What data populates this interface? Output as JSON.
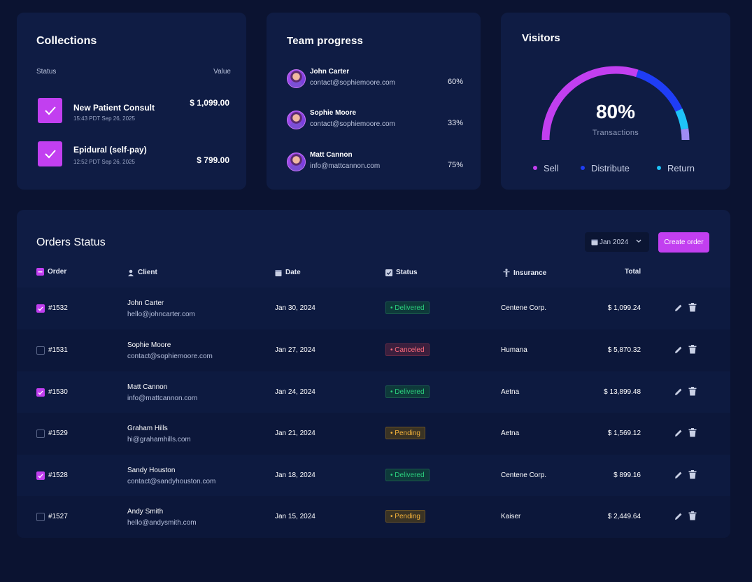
{
  "collections": {
    "title": "Collections",
    "status_header": "Status",
    "value_header": "Value",
    "items": [
      {
        "name": "New Patient Consult",
        "time": "15:43 PDT Sep 26, 2025",
        "value": "$ 1,099.00"
      },
      {
        "name": "Epidural (self-pay)",
        "time": "12:52 PDT Sep 26, 2025",
        "value": "$ 799.00"
      }
    ]
  },
  "team": {
    "title": "Team progress",
    "members": [
      {
        "name": "John Carter",
        "email": "contact@sophiemoore.com",
        "progress": "60%"
      },
      {
        "name": "Sophie Moore",
        "email": "contact@sophiemoore.com",
        "progress": "33%"
      },
      {
        "name": "Matt Cannon",
        "email": "info@mattcannon.com",
        "progress": "75%"
      }
    ]
  },
  "visitors": {
    "title": "Visitors",
    "value": "80%",
    "label": "Transactions",
    "gauge_fill": 0.8,
    "segments": [
      {
        "name": "Sell",
        "color": "#c23ff0"
      },
      {
        "name": "Distribute",
        "color": "#1f3df5"
      },
      {
        "name": "Return",
        "color": "#1ec3f7"
      }
    ],
    "legend": [
      "Sell",
      "Distribute",
      "Return"
    ]
  },
  "orders": {
    "title": "Orders Status",
    "date_filter": "Jan 2024",
    "create_label": "Create order",
    "columns": {
      "order": "Order",
      "client": "Client",
      "date": "Date",
      "status": "Status",
      "insurance": "Insurance",
      "total": "Total"
    },
    "rows": [
      {
        "checked": true,
        "order": "#1532",
        "client": "John Carter",
        "email": "hello@johncarter.com",
        "date": "Jan 30, 2024",
        "status": "Delivered",
        "insurance": "Centene Corp.",
        "total": "$ 1,099.24"
      },
      {
        "checked": false,
        "order": "#1531",
        "client": "Sophie Moore",
        "email": "contact@sophiemoore.com",
        "date": "Jan 27, 2024",
        "status": "Canceled",
        "insurance": "Humana",
        "total": "$ 5,870.32"
      },
      {
        "checked": true,
        "order": "#1530",
        "client": "Matt Cannon",
        "email": "info@mattcannon.com",
        "date": "Jan 24, 2024",
        "status": "Delivered",
        "insurance": "Aetna",
        "total": "$ 13,899.48"
      },
      {
        "checked": false,
        "order": "#1529",
        "client": "Graham Hills",
        "email": "hi@grahamhills.com",
        "date": "Jan 21, 2024",
        "status": "Pending",
        "insurance": "Aetna",
        "total": "$ 1,569.12"
      },
      {
        "checked": true,
        "order": "#1528",
        "client": "Sandy Houston",
        "email": "contact@sandyhouston.com",
        "date": "Jan 18, 2024",
        "status": "Delivered",
        "insurance": "Centene Corp.",
        "total": "$ 899.16"
      },
      {
        "checked": false,
        "order": "#1527",
        "client": "Andy Smith",
        "email": "hello@andysmith.com",
        "date": "Jan 15, 2024",
        "status": "Pending",
        "insurance": "Kaiser",
        "total": "$ 2,449.64"
      }
    ]
  }
}
